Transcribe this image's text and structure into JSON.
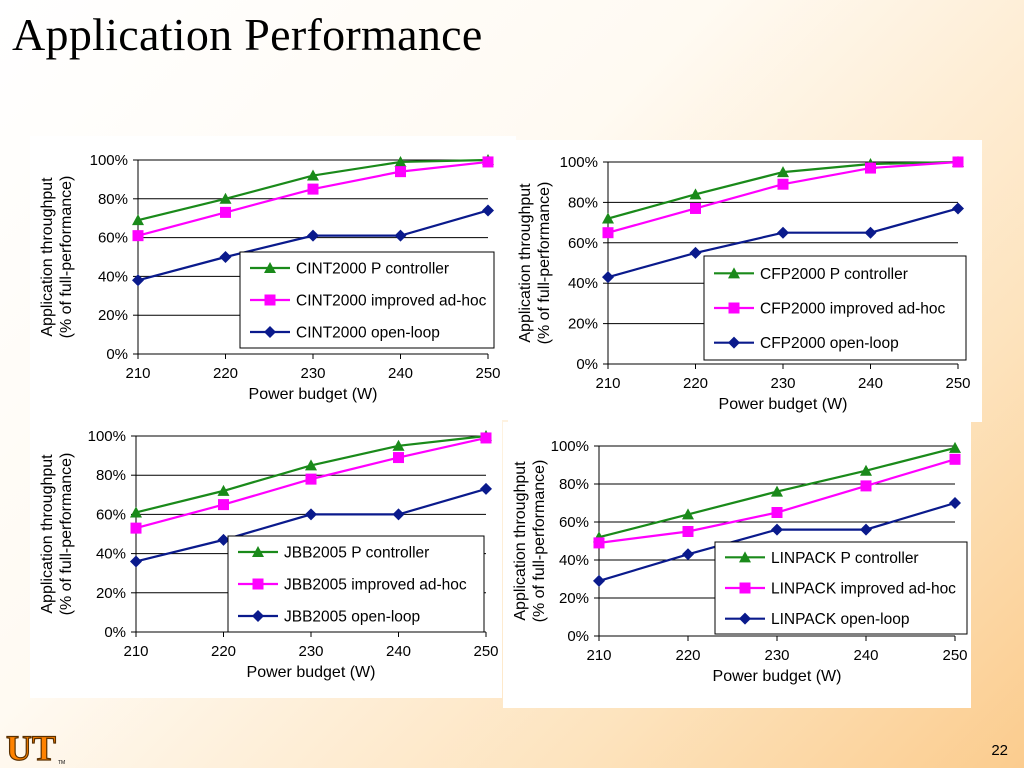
{
  "slide": {
    "title": "Application Performance",
    "page_number": "22",
    "logo_text": "UT",
    "logo_tm": "TM"
  },
  "colors": {
    "p_controller": "#1a8a1a",
    "improved_ad_hoc": "#ff00ff",
    "open_loop": "#0a1a8c"
  },
  "chart_data": [
    {
      "type": "line",
      "x": [
        210,
        220,
        230,
        240,
        250
      ],
      "xlabel": "Power budget (W)",
      "ylabel": "Application throughput",
      "ylabel2": "(% of full-performance)",
      "ylim": [
        0,
        100
      ],
      "yticks": [
        "0%",
        "20%",
        "40%",
        "60%",
        "80%",
        "100%"
      ],
      "grid": true,
      "legend_position": "lower-right",
      "series": [
        {
          "name": "CINT2000 P controller",
          "marker": "triangle",
          "values": [
            69,
            80,
            92,
            99,
            100
          ]
        },
        {
          "name": "CINT2000 improved ad-hoc",
          "marker": "square",
          "values": [
            61,
            73,
            85,
            94,
            99
          ]
        },
        {
          "name": "CINT2000 open-loop",
          "marker": "diamond",
          "values": [
            38,
            50,
            61,
            61,
            74
          ]
        }
      ]
    },
    {
      "type": "line",
      "x": [
        210,
        220,
        230,
        240,
        250
      ],
      "xlabel": "Power budget (W)",
      "ylabel": "Application throughput",
      "ylabel2": "(% of full-performance)",
      "ylim": [
        0,
        100
      ],
      "yticks": [
        "0%",
        "20%",
        "40%",
        "60%",
        "80%",
        "100%"
      ],
      "grid": true,
      "legend_position": "lower-right",
      "series": [
        {
          "name": "CFP2000 P controller",
          "marker": "triangle",
          "values": [
            72,
            84,
            95,
            99,
            100
          ]
        },
        {
          "name": "CFP2000 improved ad-hoc",
          "marker": "square",
          "values": [
            65,
            77,
            89,
            97,
            100
          ]
        },
        {
          "name": "CFP2000 open-loop",
          "marker": "diamond",
          "values": [
            43,
            55,
            65,
            65,
            77
          ]
        }
      ]
    },
    {
      "type": "line",
      "x": [
        210,
        220,
        230,
        240,
        250
      ],
      "xlabel": "Power budget (W)",
      "ylabel": "Application throughput",
      "ylabel2": "(% of full-performance)",
      "ylim": [
        0,
        100
      ],
      "yticks": [
        "0%",
        "20%",
        "40%",
        "60%",
        "80%",
        "100%"
      ],
      "grid": true,
      "legend_position": "lower-right",
      "series": [
        {
          "name": "JBB2005 P controller",
          "marker": "triangle",
          "values": [
            61,
            72,
            85,
            95,
            100
          ]
        },
        {
          "name": "JBB2005 improved ad-hoc",
          "marker": "square",
          "values": [
            53,
            65,
            78,
            89,
            99
          ]
        },
        {
          "name": "JBB2005 open-loop",
          "marker": "diamond",
          "values": [
            36,
            47,
            60,
            60,
            73
          ]
        }
      ]
    },
    {
      "type": "line",
      "x": [
        210,
        220,
        230,
        240,
        250
      ],
      "xlabel": "Power budget (W)",
      "ylabel": "Application throughput",
      "ylabel2": "(% of full-performance)",
      "ylim": [
        0,
        100
      ],
      "yticks": [
        "0%",
        "20%",
        "40%",
        "60%",
        "80%",
        "100%"
      ],
      "grid": true,
      "legend_position": "lower-right",
      "series": [
        {
          "name": "LINPACK P controller",
          "marker": "triangle",
          "values": [
            52,
            64,
            76,
            87,
            99
          ]
        },
        {
          "name": "LINPACK improved ad-hoc",
          "marker": "square",
          "values": [
            49,
            55,
            65,
            79,
            93
          ]
        },
        {
          "name": "LINPACK open-loop",
          "marker": "diamond",
          "values": [
            29,
            43,
            56,
            56,
            70
          ]
        }
      ]
    }
  ]
}
